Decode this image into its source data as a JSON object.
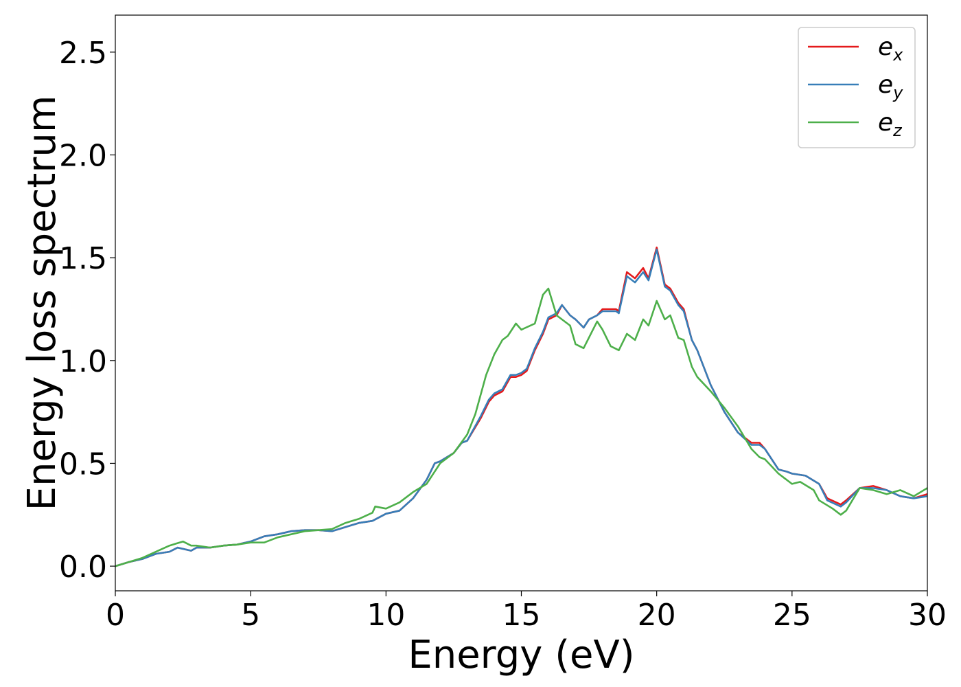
{
  "chart_data": {
    "type": "line",
    "xlabel": "Energy (eV)",
    "ylabel": "Energy loss spectrum",
    "xlim": [
      0,
      30
    ],
    "ylim": [
      -0.12,
      2.68
    ],
    "xticks": [
      0,
      5,
      10,
      15,
      20,
      25,
      30
    ],
    "xtick_labels": [
      "0",
      "5",
      "10",
      "15",
      "20",
      "25",
      "30"
    ],
    "yticks": [
      0.0,
      0.5,
      1.0,
      1.5,
      2.0,
      2.5
    ],
    "ytick_labels": [
      "0.0",
      "0.5",
      "1.0",
      "1.5",
      "2.0",
      "2.5"
    ],
    "grid": false,
    "legend_position": "top-right",
    "series": [
      {
        "name": "e_x",
        "label_base": "e",
        "label_sub": "x",
        "color": "#e41a1c",
        "points": [
          [
            0,
            0.0
          ],
          [
            0.5,
            0.02
          ],
          [
            1,
            0.035
          ],
          [
            1.5,
            0.06
          ],
          [
            2,
            0.07
          ],
          [
            2.3,
            0.09
          ],
          [
            2.8,
            0.075
          ],
          [
            3,
            0.09
          ],
          [
            3.5,
            0.09
          ],
          [
            4,
            0.1
          ],
          [
            4.5,
            0.105
          ],
          [
            5,
            0.12
          ],
          [
            5.5,
            0.145
          ],
          [
            6,
            0.155
          ],
          [
            6.5,
            0.17
          ],
          [
            7,
            0.175
          ],
          [
            7.5,
            0.175
          ],
          [
            8,
            0.17
          ],
          [
            8.5,
            0.19
          ],
          [
            9,
            0.21
          ],
          [
            9.5,
            0.22
          ],
          [
            10,
            0.255
          ],
          [
            10.5,
            0.27
          ],
          [
            11,
            0.33
          ],
          [
            11.5,
            0.42
          ],
          [
            11.8,
            0.5
          ],
          [
            12,
            0.51
          ],
          [
            12.5,
            0.55
          ],
          [
            12.8,
            0.6
          ],
          [
            13,
            0.61
          ],
          [
            13.5,
            0.72
          ],
          [
            13.8,
            0.8
          ],
          [
            14,
            0.83
          ],
          [
            14.3,
            0.85
          ],
          [
            14.6,
            0.92
          ],
          [
            14.8,
            0.92
          ],
          [
            15,
            0.93
          ],
          [
            15.2,
            0.95
          ],
          [
            15.5,
            1.05
          ],
          [
            15.8,
            1.13
          ],
          [
            16,
            1.2
          ],
          [
            16.3,
            1.22
          ],
          [
            16.5,
            1.27
          ],
          [
            16.8,
            1.22
          ],
          [
            17,
            1.2
          ],
          [
            17.3,
            1.16
          ],
          [
            17.5,
            1.2
          ],
          [
            17.8,
            1.22
          ],
          [
            18,
            1.25
          ],
          [
            18.5,
            1.25
          ],
          [
            18.6,
            1.24
          ],
          [
            18.9,
            1.43
          ],
          [
            19.2,
            1.4
          ],
          [
            19.5,
            1.45
          ],
          [
            19.7,
            1.4
          ],
          [
            20,
            1.55
          ],
          [
            20.3,
            1.37
          ],
          [
            20.5,
            1.35
          ],
          [
            20.8,
            1.28
          ],
          [
            21,
            1.25
          ],
          [
            21.3,
            1.1
          ],
          [
            21.5,
            1.05
          ],
          [
            22,
            0.88
          ],
          [
            22.5,
            0.75
          ],
          [
            23,
            0.65
          ],
          [
            23.5,
            0.6
          ],
          [
            23.8,
            0.6
          ],
          [
            24,
            0.57
          ],
          [
            24.5,
            0.47
          ],
          [
            24.8,
            0.46
          ],
          [
            25,
            0.45
          ],
          [
            25.5,
            0.44
          ],
          [
            26,
            0.4
          ],
          [
            26.3,
            0.33
          ],
          [
            26.8,
            0.3
          ],
          [
            27,
            0.32
          ],
          [
            27.5,
            0.38
          ],
          [
            28,
            0.39
          ],
          [
            28.5,
            0.37
          ],
          [
            29,
            0.34
          ],
          [
            29.5,
            0.33
          ],
          [
            30,
            0.35
          ]
        ]
      },
      {
        "name": "e_y",
        "label_base": "e",
        "label_sub": "y",
        "color": "#377eb8",
        "points": [
          [
            0,
            0.0
          ],
          [
            0.5,
            0.02
          ],
          [
            1,
            0.035
          ],
          [
            1.5,
            0.06
          ],
          [
            2,
            0.07
          ],
          [
            2.3,
            0.09
          ],
          [
            2.8,
            0.075
          ],
          [
            3,
            0.09
          ],
          [
            3.5,
            0.09
          ],
          [
            4,
            0.1
          ],
          [
            4.5,
            0.105
          ],
          [
            5,
            0.12
          ],
          [
            5.5,
            0.145
          ],
          [
            6,
            0.155
          ],
          [
            6.5,
            0.17
          ],
          [
            7,
            0.175
          ],
          [
            7.5,
            0.175
          ],
          [
            8,
            0.17
          ],
          [
            8.5,
            0.19
          ],
          [
            9,
            0.21
          ],
          [
            9.5,
            0.22
          ],
          [
            10,
            0.255
          ],
          [
            10.5,
            0.27
          ],
          [
            11,
            0.33
          ],
          [
            11.5,
            0.42
          ],
          [
            11.8,
            0.5
          ],
          [
            12,
            0.51
          ],
          [
            12.5,
            0.55
          ],
          [
            12.8,
            0.6
          ],
          [
            13,
            0.61
          ],
          [
            13.5,
            0.73
          ],
          [
            13.8,
            0.81
          ],
          [
            14,
            0.84
          ],
          [
            14.3,
            0.86
          ],
          [
            14.6,
            0.93
          ],
          [
            14.8,
            0.93
          ],
          [
            15,
            0.94
          ],
          [
            15.2,
            0.96
          ],
          [
            15.5,
            1.06
          ],
          [
            15.8,
            1.14
          ],
          [
            16,
            1.21
          ],
          [
            16.3,
            1.23
          ],
          [
            16.5,
            1.27
          ],
          [
            16.8,
            1.22
          ],
          [
            17,
            1.2
          ],
          [
            17.3,
            1.16
          ],
          [
            17.5,
            1.2
          ],
          [
            17.8,
            1.22
          ],
          [
            18,
            1.24
          ],
          [
            18.5,
            1.24
          ],
          [
            18.6,
            1.23
          ],
          [
            18.9,
            1.41
          ],
          [
            19.2,
            1.38
          ],
          [
            19.5,
            1.43
          ],
          [
            19.7,
            1.39
          ],
          [
            20,
            1.54
          ],
          [
            20.3,
            1.36
          ],
          [
            20.5,
            1.34
          ],
          [
            20.8,
            1.27
          ],
          [
            21,
            1.24
          ],
          [
            21.3,
            1.1
          ],
          [
            21.5,
            1.05
          ],
          [
            22,
            0.88
          ],
          [
            22.5,
            0.75
          ],
          [
            23,
            0.65
          ],
          [
            23.5,
            0.59
          ],
          [
            23.8,
            0.59
          ],
          [
            24,
            0.57
          ],
          [
            24.5,
            0.47
          ],
          [
            24.8,
            0.46
          ],
          [
            25,
            0.45
          ],
          [
            25.5,
            0.44
          ],
          [
            26,
            0.4
          ],
          [
            26.3,
            0.32
          ],
          [
            26.8,
            0.29
          ],
          [
            27,
            0.31
          ],
          [
            27.5,
            0.38
          ],
          [
            28,
            0.38
          ],
          [
            28.5,
            0.37
          ],
          [
            29,
            0.34
          ],
          [
            29.5,
            0.33
          ],
          [
            30,
            0.34
          ]
        ]
      },
      {
        "name": "e_z",
        "label_base": "e",
        "label_sub": "z",
        "color": "#4daf4a",
        "points": [
          [
            0,
            0.0
          ],
          [
            0.5,
            0.02
          ],
          [
            1,
            0.04
          ],
          [
            1.5,
            0.07
          ],
          [
            2,
            0.1
          ],
          [
            2.5,
            0.12
          ],
          [
            2.8,
            0.1
          ],
          [
            3,
            0.1
          ],
          [
            3.5,
            0.09
          ],
          [
            4,
            0.1
          ],
          [
            4.5,
            0.105
          ],
          [
            5,
            0.115
          ],
          [
            5.5,
            0.115
          ],
          [
            6,
            0.14
          ],
          [
            6.5,
            0.155
          ],
          [
            7,
            0.17
          ],
          [
            7.5,
            0.175
          ],
          [
            8,
            0.18
          ],
          [
            8.5,
            0.21
          ],
          [
            9,
            0.23
          ],
          [
            9.5,
            0.26
          ],
          [
            9.6,
            0.29
          ],
          [
            10,
            0.28
          ],
          [
            10.5,
            0.31
          ],
          [
            11,
            0.36
          ],
          [
            11.5,
            0.4
          ],
          [
            12,
            0.5
          ],
          [
            12.5,
            0.55
          ],
          [
            13,
            0.64
          ],
          [
            13.3,
            0.74
          ],
          [
            13.7,
            0.93
          ],
          [
            14,
            1.03
          ],
          [
            14.3,
            1.1
          ],
          [
            14.5,
            1.12
          ],
          [
            14.8,
            1.18
          ],
          [
            15,
            1.15
          ],
          [
            15.5,
            1.18
          ],
          [
            15.8,
            1.32
          ],
          [
            16,
            1.35
          ],
          [
            16.3,
            1.22
          ],
          [
            16.8,
            1.17
          ],
          [
            17,
            1.08
          ],
          [
            17.3,
            1.06
          ],
          [
            17.8,
            1.19
          ],
          [
            18,
            1.15
          ],
          [
            18.3,
            1.07
          ],
          [
            18.6,
            1.05
          ],
          [
            18.9,
            1.13
          ],
          [
            19.2,
            1.1
          ],
          [
            19.5,
            1.2
          ],
          [
            19.7,
            1.17
          ],
          [
            20,
            1.29
          ],
          [
            20.3,
            1.2
          ],
          [
            20.5,
            1.22
          ],
          [
            20.8,
            1.11
          ],
          [
            21,
            1.1
          ],
          [
            21.3,
            0.97
          ],
          [
            21.5,
            0.92
          ],
          [
            22,
            0.85
          ],
          [
            22.5,
            0.77
          ],
          [
            23,
            0.68
          ],
          [
            23.5,
            0.57
          ],
          [
            23.8,
            0.53
          ],
          [
            24,
            0.52
          ],
          [
            24.5,
            0.45
          ],
          [
            25,
            0.4
          ],
          [
            25.3,
            0.41
          ],
          [
            25.8,
            0.37
          ],
          [
            26,
            0.32
          ],
          [
            26.5,
            0.28
          ],
          [
            26.8,
            0.25
          ],
          [
            27,
            0.27
          ],
          [
            27.5,
            0.38
          ],
          [
            28,
            0.37
          ],
          [
            28.5,
            0.35
          ],
          [
            29,
            0.37
          ],
          [
            29.5,
            0.34
          ],
          [
            30,
            0.38
          ]
        ]
      }
    ]
  }
}
